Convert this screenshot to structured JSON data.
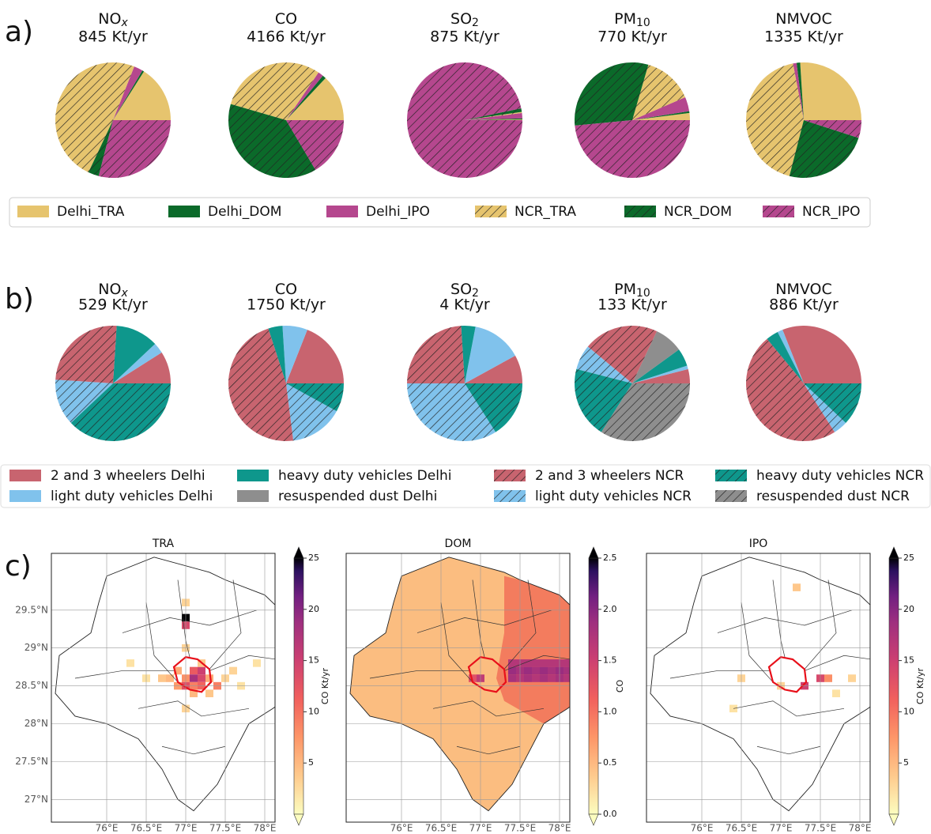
{
  "panel_labels": [
    "a)",
    "b)",
    "c)"
  ],
  "chart_data": [
    {
      "type": "pie",
      "title": "NO",
      "title_sub": "x",
      "subtitle": "845 Kt/yr",
      "categories": [
        "Delhi_TRA",
        "Delhi_DOM",
        "Delhi_IPO",
        "NCR_TRA",
        "NCR_DOM",
        "NCR_IPO"
      ],
      "values": [
        16,
        0.5,
        2.5,
        49,
        3,
        29
      ],
      "colors": [
        "#e6c46e",
        "#0b6a2a",
        "#b5478e",
        "#e6c46e",
        "#0b6a2a",
        "#b5478e"
      ],
      "hatch": [
        false,
        false,
        false,
        true,
        true,
        true
      ]
    },
    {
      "type": "pie",
      "title": "CO",
      "subtitle": "4166 Kt/yr",
      "categories": [
        "Delhi_TRA",
        "Delhi_DOM",
        "Delhi_IPO",
        "NCR_TRA",
        "NCR_DOM",
        "NCR_IPO"
      ],
      "values": [
        13,
        1,
        1.5,
        30,
        38,
        16.5
      ],
      "colors": [
        "#e6c46e",
        "#0b6a2a",
        "#b5478e",
        "#e6c46e",
        "#0b6a2a",
        "#b5478e"
      ],
      "hatch": [
        false,
        false,
        false,
        true,
        true,
        true
      ]
    },
    {
      "type": "pie",
      "title": "SO",
      "title_sub": "2",
      "subtitle": "875 Kt/yr",
      "categories": [
        "Delhi_TRA",
        "Delhi_DOM",
        "Delhi_IPO",
        "NCR_TRA",
        "NCR_DOM",
        "NCR_IPO"
      ],
      "values": [
        0.2,
        0.3,
        1.5,
        0.3,
        1,
        96.7
      ],
      "colors": [
        "#e6c46e",
        "#0b6a2a",
        "#b5478e",
        "#e6c46e",
        "#0b6a2a",
        "#b5478e"
      ],
      "hatch": [
        false,
        false,
        false,
        true,
        true,
        true
      ]
    },
    {
      "type": "pie",
      "title": "PM",
      "title_sub": "10",
      "subtitle": "770 Kt/yr",
      "categories": [
        "Delhi_TRA",
        "Delhi_DOM",
        "Delhi_IPO",
        "NCR_TRA",
        "NCR_DOM",
        "NCR_IPO"
      ],
      "values": [
        2,
        0.5,
        4,
        14,
        31,
        48.5
      ],
      "colors": [
        "#e6c46e",
        "#0b6a2a",
        "#b5478e",
        "#e6c46e",
        "#0b6a2a",
        "#b5478e"
      ],
      "hatch": [
        false,
        false,
        false,
        true,
        true,
        true
      ]
    },
    {
      "type": "pie",
      "title": "NMVOC",
      "subtitle": "1335 Kt/yr",
      "categories": [
        "Delhi_TRA",
        "Delhi_DOM",
        "Delhi_IPO",
        "NCR_TRA",
        "NCR_DOM",
        "NCR_IPO"
      ],
      "values": [
        26,
        1,
        1,
        43,
        24,
        5
      ],
      "colors": [
        "#e6c46e",
        "#0b6a2a",
        "#b5478e",
        "#e6c46e",
        "#0b6a2a",
        "#b5478e"
      ],
      "hatch": [
        false,
        false,
        false,
        true,
        true,
        true
      ]
    },
    {
      "type": "pie",
      "title": "NO",
      "title_sub": "x",
      "subtitle": "529 Kt/yr",
      "categories": [
        "2 and 3 wheelers Delhi",
        "light duty vehicles Delhi",
        "heavy duty vehicles Delhi",
        "resuspended dust Delhi",
        "2 and 3 wheelers NCR",
        "light duty vehicles NCR",
        "heavy duty vehicles NCR",
        "resuspended dust NCR"
      ],
      "values": [
        9,
        3,
        12,
        0,
        25,
        13,
        38,
        0
      ],
      "colors": [
        "#c8646f",
        "#80c2ec",
        "#0e978c",
        "#8e8e8e",
        "#c8646f",
        "#80c2ec",
        "#0e978c",
        "#8e8e8e"
      ],
      "hatch": [
        false,
        false,
        false,
        false,
        true,
        true,
        true,
        true
      ]
    },
    {
      "type": "pie",
      "title": "CO",
      "subtitle": "1750 Kt/yr",
      "categories": [
        "2 and 3 wheelers Delhi",
        "light duty vehicles Delhi",
        "heavy duty vehicles Delhi",
        "resuspended dust Delhi",
        "2 and 3 wheelers NCR",
        "light duty vehicles NCR",
        "heavy duty vehicles NCR",
        "resuspended dust NCR"
      ],
      "values": [
        19,
        7,
        4,
        0,
        47,
        15,
        8,
        0
      ],
      "colors": [
        "#c8646f",
        "#80c2ec",
        "#0e978c",
        "#8e8e8e",
        "#c8646f",
        "#80c2ec",
        "#0e978c",
        "#8e8e8e"
      ],
      "hatch": [
        false,
        false,
        false,
        false,
        true,
        true,
        true,
        true
      ]
    },
    {
      "type": "pie",
      "title": "SO",
      "title_sub": "2",
      "subtitle": "4 Kt/yr",
      "categories": [
        "2 and 3 wheelers Delhi",
        "light duty vehicles Delhi",
        "heavy duty vehicles Delhi",
        "resuspended dust Delhi",
        "2 and 3 wheelers NCR",
        "light duty vehicles NCR",
        "heavy duty vehicles NCR",
        "resuspended dust NCR"
      ],
      "values": [
        8,
        14,
        4,
        0,
        24,
        34,
        16,
        0
      ],
      "colors": [
        "#c8646f",
        "#80c2ec",
        "#0e978c",
        "#8e8e8e",
        "#c8646f",
        "#80c2ec",
        "#0e978c",
        "#8e8e8e"
      ],
      "hatch": [
        false,
        false,
        false,
        false,
        true,
        true,
        true,
        true
      ]
    },
    {
      "type": "pie",
      "title": "PM",
      "title_sub": "10",
      "subtitle": "133 Kt/yr",
      "categories": [
        "2 and 3 wheelers Delhi",
        "light duty vehicles Delhi",
        "heavy duty vehicles Delhi",
        "resuspended dust Delhi",
        "2 and 3 wheelers NCR",
        "light duty vehicles NCR",
        "heavy duty vehicles NCR",
        "resuspended dust NCR"
      ],
      "values": [
        4,
        1,
        5,
        8,
        21,
        7,
        20,
        34
      ],
      "colors": [
        "#c8646f",
        "#80c2ec",
        "#0e978c",
        "#8e8e8e",
        "#c8646f",
        "#80c2ec",
        "#0e978c",
        "#8e8e8e"
      ],
      "hatch": [
        false,
        false,
        false,
        false,
        true,
        true,
        true,
        true
      ]
    },
    {
      "type": "pie",
      "title": "NMVOC",
      "subtitle": "886 Kt/yr",
      "categories": [
        "2 and 3 wheelers Delhi",
        "light duty vehicles Delhi",
        "heavy duty vehicles Delhi",
        "resuspended dust Delhi",
        "2 and 3 wheelers NCR",
        "light duty vehicles NCR",
        "heavy duty vehicles NCR",
        "resuspended dust NCR"
      ],
      "values": [
        31,
        1.5,
        3.5,
        0,
        48,
        4,
        12,
        0
      ],
      "colors": [
        "#c8646f",
        "#80c2ec",
        "#0e978c",
        "#8e8e8e",
        "#c8646f",
        "#80c2ec",
        "#0e978c",
        "#8e8e8e"
      ],
      "hatch": [
        false,
        false,
        false,
        false,
        true,
        true,
        true,
        true
      ]
    },
    {
      "type": "map",
      "title": "TRA",
      "xlim": [
        75.3,
        78.13
      ],
      "ylim": [
        26.7,
        30.25
      ],
      "xticks": [
        {
          "value": 76,
          "label": "76°E"
        },
        {
          "value": 76.5,
          "label": "76.5°E"
        },
        {
          "value": 77,
          "label": "77°E"
        },
        {
          "value": 77.5,
          "label": "77.5°E"
        },
        {
          "value": 78,
          "label": "78°E"
        }
      ],
      "yticks": [
        {
          "value": 27,
          "label": "27°N"
        },
        {
          "value": 27.5,
          "label": "27.5°N"
        },
        {
          "value": 28,
          "label": "28°N"
        },
        {
          "value": 28.5,
          "label": "28.5°N"
        },
        {
          "value": 29,
          "label": "29°N"
        },
        {
          "value": 29.5,
          "label": "29.5°N"
        }
      ],
      "lat_labels": true,
      "clim": [
        0,
        25
      ],
      "cticks": [
        5,
        10,
        15,
        20,
        25
      ],
      "colorbar_label": "CO Kt/yr",
      "x": [
        77.0,
        77.0,
        77.1,
        77.2,
        77.0,
        77.1,
        77.2,
        77.3,
        76.9,
        77.0,
        77.1,
        77.2,
        76.8,
        77.4,
        77.5,
        76.7,
        76.5,
        77.6,
        77.7,
        77.0,
        77.0,
        77.0,
        76.3,
        77.9,
        77.1,
        77.2,
        77.3,
        76.9
      ],
      "y": [
        29.4,
        29.3,
        28.7,
        28.7,
        28.6,
        28.6,
        28.6,
        28.6,
        28.5,
        28.5,
        28.5,
        28.5,
        28.6,
        28.5,
        28.6,
        28.6,
        28.6,
        28.7,
        28.5,
        29.0,
        29.6,
        28.2,
        28.8,
        28.8,
        28.4,
        28.8,
        28.4,
        28.7
      ],
      "values": [
        25,
        14,
        12,
        15,
        8,
        18,
        14,
        6,
        7,
        13,
        9,
        11,
        5,
        9,
        3,
        4,
        2,
        3,
        2,
        3,
        3,
        3,
        2,
        2,
        5,
        4,
        4,
        6
      ]
    },
    {
      "type": "map",
      "title": "DOM",
      "xlim": [
        75.3,
        78.13
      ],
      "ylim": [
        26.7,
        30.25
      ],
      "xticks": [
        {
          "value": 76,
          "label": "76°E"
        },
        {
          "value": 76.5,
          "label": "76.5°E"
        },
        {
          "value": 77,
          "label": "77°E"
        },
        {
          "value": 77.5,
          "label": "77.5°E"
        },
        {
          "value": 78,
          "label": "78°E"
        }
      ],
      "yticks": [
        27,
        27.5,
        28,
        28.5,
        29,
        29.5
      ],
      "lat_labels": false,
      "clim": [
        0,
        2.5
      ],
      "cticks": [
        {
          "value": 0,
          "label": "0.0"
        },
        0.5,
        {
          "value": 1,
          "label": "1.0"
        },
        1.5,
        {
          "value": 2,
          "label": "2.0"
        },
        2.5
      ],
      "colorbar_label": "CO",
      "x": [
        77.4,
        77.5,
        77.6,
        77.7,
        77.8,
        77.9,
        78.0,
        78.1,
        77.4,
        77.5,
        77.6,
        77.7,
        77.8,
        77.9,
        78.0,
        78.1,
        77.4,
        77.5,
        77.6,
        77.7,
        77.8,
        77.9,
        78.0,
        78.1,
        76.9,
        77.0
      ],
      "y": [
        28.8,
        28.8,
        28.8,
        28.8,
        28.8,
        28.8,
        28.8,
        28.8,
        28.7,
        28.7,
        28.7,
        28.7,
        28.7,
        28.7,
        28.7,
        28.7,
        28.6,
        28.6,
        28.6,
        28.6,
        28.6,
        28.6,
        28.6,
        28.6,
        28.6,
        28.6
      ],
      "values": [
        1.7,
        1.7,
        1.7,
        1.7,
        1.7,
        1.7,
        1.7,
        1.7,
        1.9,
        1.8,
        1.9,
        1.8,
        1.9,
        1.8,
        1.9,
        1.8,
        1.8,
        1.7,
        1.8,
        1.7,
        1.8,
        1.7,
        1.8,
        1.7,
        1.3,
        1.6
      ]
    },
    {
      "type": "map",
      "title": "IPO",
      "xlim": [
        75.3,
        78.13
      ],
      "ylim": [
        26.7,
        30.25
      ],
      "xticks": [
        {
          "value": 76,
          "label": "76°E"
        },
        {
          "value": 76.5,
          "label": "76.5°E"
        },
        {
          "value": 77,
          "label": "77°E"
        },
        {
          "value": 77.5,
          "label": "77.5°E"
        },
        {
          "value": 78,
          "label": "78°E"
        }
      ],
      "yticks": [
        27,
        27.5,
        28,
        28.5,
        29,
        29.5
      ],
      "lat_labels": false,
      "clim": [
        0,
        25
      ],
      "cticks": [
        5,
        10,
        15,
        20,
        25
      ],
      "colorbar_label": "CO Kt/yr",
      "x": [
        77.5,
        77.6,
        77.3,
        76.5,
        77.9,
        77.0,
        78.3,
        77.7,
        76.4,
        77.2
      ],
      "y": [
        28.6,
        28.6,
        28.5,
        28.6,
        28.6,
        28.5,
        28.7,
        28.4,
        28.2,
        29.8
      ],
      "values": [
        14,
        8,
        15,
        3,
        3,
        3,
        13,
        2,
        2,
        4
      ]
    }
  ]
}
